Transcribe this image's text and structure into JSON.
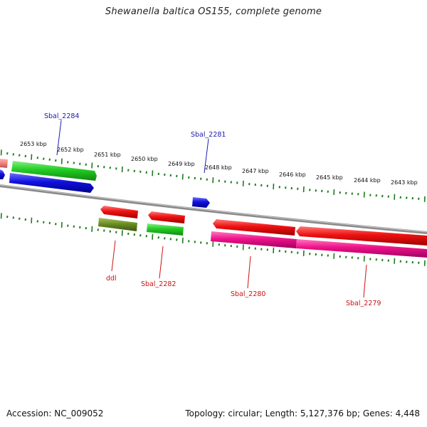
{
  "title": "Shewanella baltica OS155, complete genome",
  "footer": {
    "accession_text": "Accession: NC_009052",
    "stats_text": "Topology: circular; Length: 5,127,376 bp; Genes: 4,448"
  },
  "colors": {
    "backbone": "#8a8a8a",
    "tick": "#1f7a1f",
    "label_top": "#1a1ab0",
    "label_bottom": "#cc1111",
    "red": "#ee1111",
    "blue": "#1010dd",
    "green": "#22cc22",
    "olive": "#6b8e23",
    "pink": "#ee1188",
    "salmon": "#f08080"
  },
  "scale": {
    "unit": "kbp",
    "labels": [
      "2653 kbp",
      "2652 kbp",
      "2651 kbp",
      "2650 kbp",
      "2649 kbp",
      "2648 kbp",
      "2647 kbp",
      "2646 kbp",
      "2645 kbp",
      "2644 kbp",
      "2643 kbp"
    ]
  },
  "gene_labels": [
    {
      "text": "Sbal_2284",
      "strand": "plus"
    },
    {
      "text": "Sbal_2281",
      "strand": "plus"
    },
    {
      "text": "ddl",
      "strand": "minus"
    },
    {
      "text": "Sbal_2282",
      "strand": "minus"
    },
    {
      "text": "Sbal_2280",
      "strand": "minus"
    },
    {
      "text": "Sbal_2279",
      "strand": "minus"
    }
  ]
}
